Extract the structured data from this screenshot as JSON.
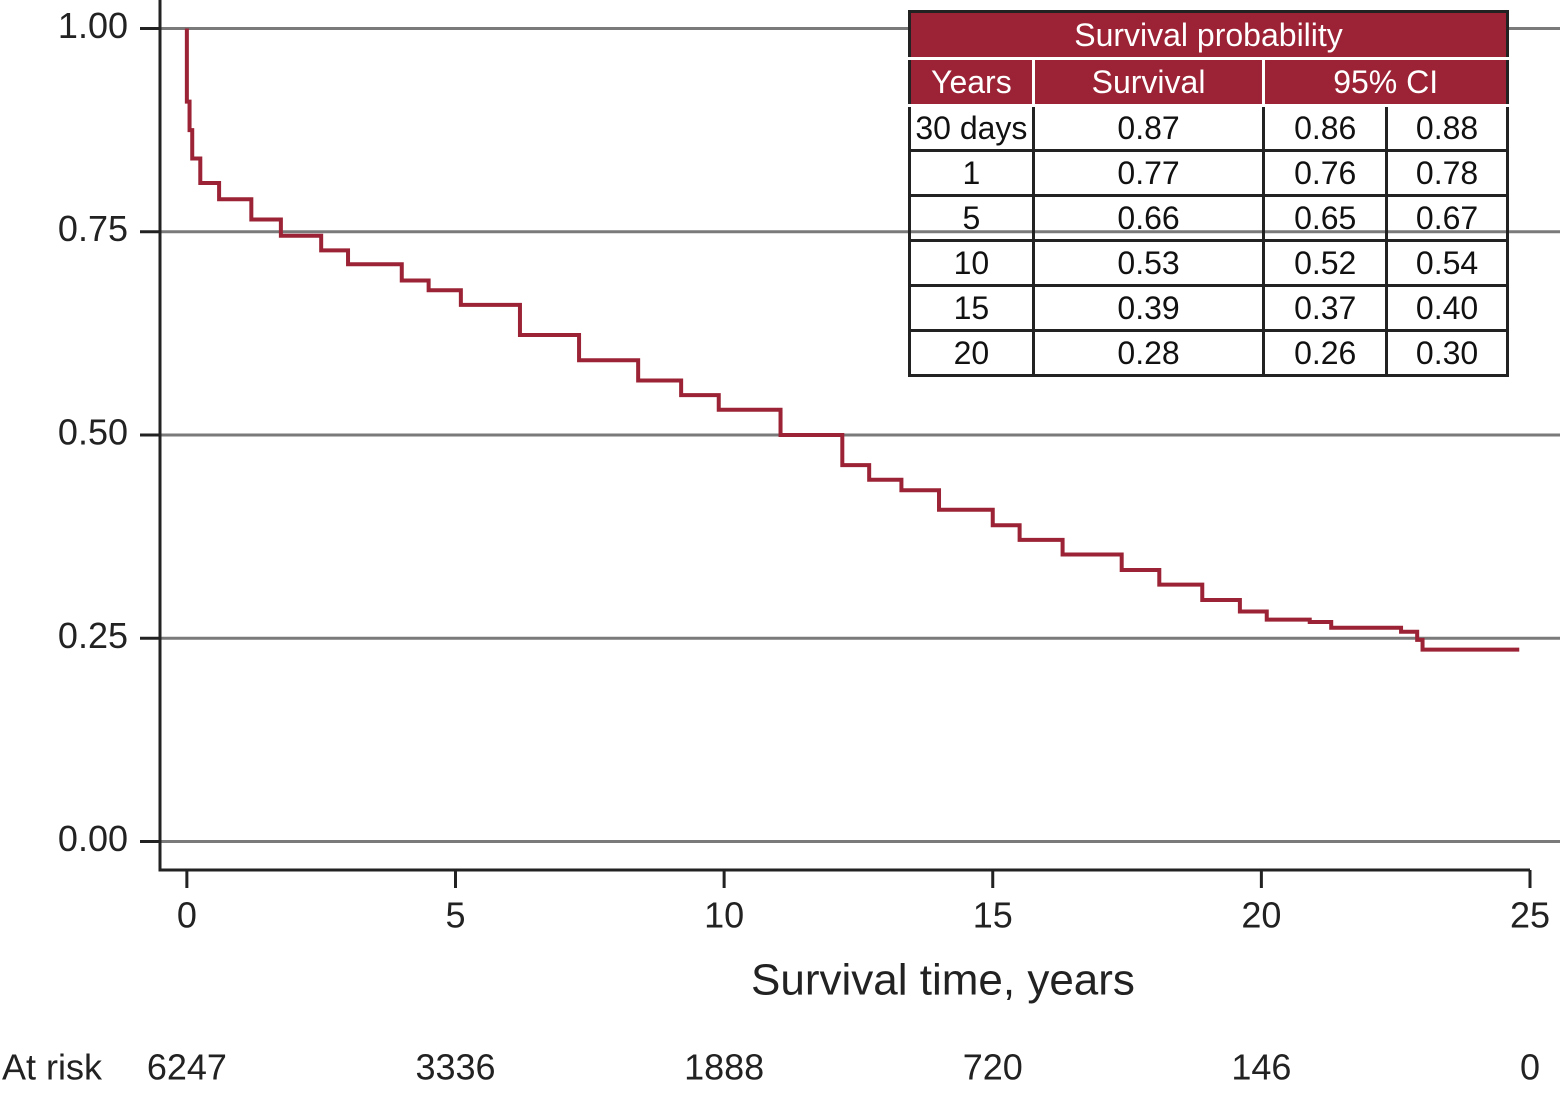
{
  "chart_data": {
    "type": "step",
    "x_label": "Survival time, years",
    "x": [
      0,
      0,
      0.05,
      0.1,
      0.25,
      0.6,
      1.2,
      1.75,
      2.5,
      3.0,
      4.0,
      4.5,
      5.1,
      6.2,
      7.3,
      8.4,
      9.2,
      9.9,
      11.05,
      12.2,
      12.7,
      13.3,
      14.0,
      15.0,
      15.5,
      16.3,
      17.4,
      18.1,
      18.9,
      19.6,
      20.1,
      20.9,
      21.3,
      22.6,
      22.9,
      23.0,
      24.8
    ],
    "values": [
      1.0,
      0.91,
      0.875,
      0.84,
      0.81,
      0.79,
      0.765,
      0.745,
      0.727,
      0.71,
      0.69,
      0.678,
      0.66,
      0.623,
      0.592,
      0.567,
      0.549,
      0.531,
      0.5,
      0.463,
      0.445,
      0.432,
      0.408,
      0.389,
      0.371,
      0.353,
      0.334,
      0.316,
      0.297,
      0.283,
      0.273,
      0.27,
      0.263,
      0.258,
      0.248,
      0.236,
      0.236
    ],
    "color": "#9b2335",
    "xlim": [
      -0.5,
      25
    ],
    "xticks": [
      0,
      5,
      10,
      15,
      20,
      25
    ],
    "ylim": [
      -0.035,
      1.035
    ],
    "yticks": [
      {
        "value": 1,
        "label": "1.00"
      },
      0.75,
      {
        "value": 0.5,
        "label": "0.50"
      },
      0.25,
      {
        "value": 0,
        "label": "0.00"
      }
    ],
    "grid": true,
    "at_risk": {
      "label": "At risk",
      "values": [
        6247,
        3336,
        1888,
        720,
        146,
        0
      ]
    },
    "table": {
      "title": "Survival probability",
      "header": [
        "Years",
        "Survival",
        "95% CI"
      ],
      "rows": [
        [
          "30 days",
          "0.87",
          "0.86",
          "0.88"
        ],
        [
          "1",
          "0.77",
          "0.76",
          "0.78"
        ],
        [
          "5",
          "0.66",
          "0.65",
          "0.67"
        ],
        [
          "10",
          "0.53",
          "0.52",
          "0.54"
        ],
        [
          "15",
          "0.39",
          "0.37",
          "0.40"
        ],
        [
          "20",
          "0.28",
          "0.26",
          "0.30"
        ]
      ]
    }
  }
}
